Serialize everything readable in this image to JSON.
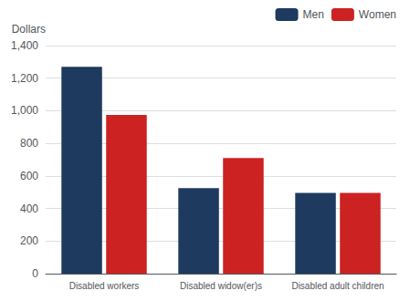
{
  "chart_data": {
    "type": "bar",
    "categories": [
      "Disabled workers",
      "Disabled widow(er)s",
      "Disabled adult children"
    ],
    "series": [
      {
        "name": "Men",
        "color": "#1e3a5f",
        "values": [
          1270,
          525,
          495
        ]
      },
      {
        "name": "Women",
        "color": "#cc2222",
        "values": [
          975,
          710,
          495
        ]
      }
    ],
    "ylabel": "Dollars",
    "ylim": [
      0,
      1400
    ],
    "yticks": [
      0,
      200,
      400,
      600,
      800,
      {
        "value": 1000,
        "label": "1,000"
      },
      {
        "value": 1200,
        "label": "1,200"
      },
      {
        "value": 1400,
        "label": "1,400"
      }
    ],
    "grid": true,
    "legend": "upper right"
  }
}
